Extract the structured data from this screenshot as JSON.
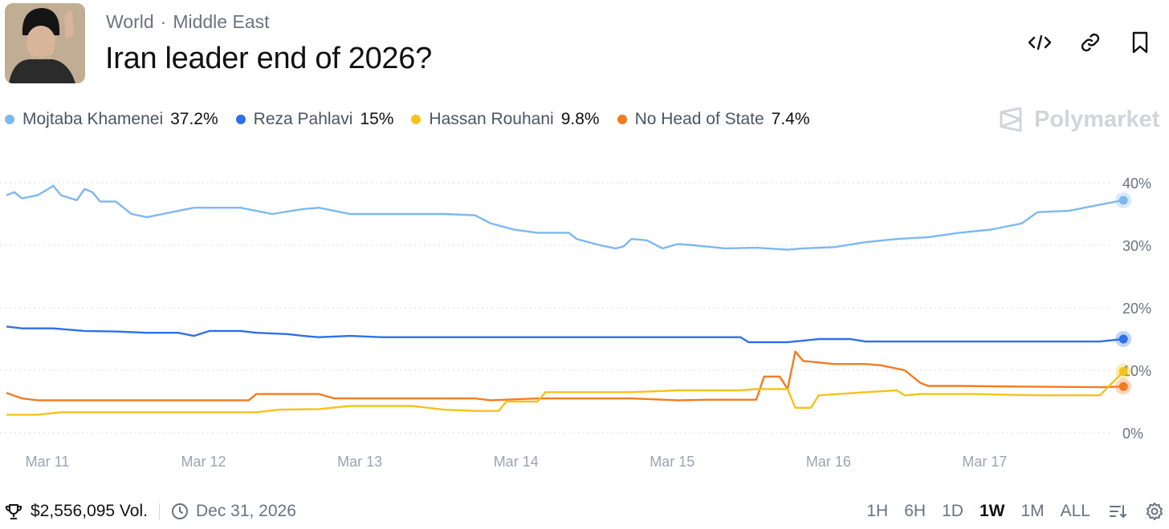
{
  "header": {
    "breadcrumb": [
      "World",
      "Middle East"
    ],
    "title": "Iran leader end of 2026?"
  },
  "brand": "Polymarket",
  "footer": {
    "volume": "$2,556,095 Vol.",
    "end_date": "Dec 31, 2026"
  },
  "time_ranges": [
    "1H",
    "6H",
    "1D",
    "1W",
    "1M",
    "ALL"
  ],
  "active_range": "1W",
  "chart_data": {
    "type": "line",
    "x_ticks": [
      "Mar 11",
      "Mar 12",
      "Mar 13",
      "Mar 14",
      "Mar 15",
      "Mar 16",
      "Mar 17"
    ],
    "y_ticks": [
      "40%",
      "30%",
      "20%",
      "10%",
      "0%"
    ],
    "ylim": [
      0,
      40
    ],
    "x_domain": [
      0,
      7
    ],
    "series": [
      {
        "name": "Mojtaba Khamenei",
        "label": "37.2%",
        "current": 37.2,
        "color": "#7db8f0",
        "points": [
          [
            0,
            38
          ],
          [
            0.05,
            38.5
          ],
          [
            0.1,
            37.5
          ],
          [
            0.2,
            38
          ],
          [
            0.3,
            39.5
          ],
          [
            0.35,
            38
          ],
          [
            0.45,
            37.2
          ],
          [
            0.5,
            39
          ],
          [
            0.55,
            38.5
          ],
          [
            0.6,
            37
          ],
          [
            0.7,
            37
          ],
          [
            0.8,
            35
          ],
          [
            0.9,
            34.5
          ],
          [
            1.0,
            35
          ],
          [
            1.1,
            35.5
          ],
          [
            1.2,
            36
          ],
          [
            1.3,
            36
          ],
          [
            1.5,
            36
          ],
          [
            1.7,
            35
          ],
          [
            1.9,
            35.8
          ],
          [
            2.0,
            36
          ],
          [
            2.1,
            35.5
          ],
          [
            2.2,
            35
          ],
          [
            2.5,
            35
          ],
          [
            2.8,
            35
          ],
          [
            3.0,
            34.8
          ],
          [
            3.1,
            33.5
          ],
          [
            3.25,
            32.5
          ],
          [
            3.4,
            32
          ],
          [
            3.6,
            32
          ],
          [
            3.65,
            31
          ],
          [
            3.8,
            30
          ],
          [
            3.9,
            29.5
          ],
          [
            3.95,
            29.8
          ],
          [
            4.0,
            31
          ],
          [
            4.1,
            30.8
          ],
          [
            4.2,
            29.5
          ],
          [
            4.3,
            30.2
          ],
          [
            4.4,
            30
          ],
          [
            4.6,
            29.5
          ],
          [
            4.8,
            29.6
          ],
          [
            5.0,
            29.3
          ],
          [
            5.1,
            29.5
          ],
          [
            5.3,
            29.7
          ],
          [
            5.5,
            30.5
          ],
          [
            5.7,
            31
          ],
          [
            5.9,
            31.3
          ],
          [
            6.1,
            32
          ],
          [
            6.3,
            32.5
          ],
          [
            6.5,
            33.5
          ],
          [
            6.6,
            35.3
          ],
          [
            6.8,
            35.5
          ],
          [
            6.9,
            36
          ],
          [
            7.0,
            36.5
          ],
          [
            7.15,
            37.2
          ]
        ]
      },
      {
        "name": "Reza Pahlavi",
        "label": "15%",
        "current": 15,
        "color": "#2f6fe8",
        "points": [
          [
            0,
            17
          ],
          [
            0.1,
            16.7
          ],
          [
            0.3,
            16.7
          ],
          [
            0.5,
            16.3
          ],
          [
            0.7,
            16.2
          ],
          [
            0.9,
            16
          ],
          [
            1.1,
            16
          ],
          [
            1.2,
            15.5
          ],
          [
            1.3,
            16.3
          ],
          [
            1.5,
            16.3
          ],
          [
            1.6,
            16
          ],
          [
            1.8,
            15.8
          ],
          [
            1.9,
            15.5
          ],
          [
            2.0,
            15.3
          ],
          [
            2.2,
            15.5
          ],
          [
            2.4,
            15.3
          ],
          [
            2.8,
            15.3
          ],
          [
            3.2,
            15.3
          ],
          [
            3.6,
            15.3
          ],
          [
            4.0,
            15.3
          ],
          [
            4.4,
            15.3
          ],
          [
            4.7,
            15.3
          ],
          [
            4.75,
            14.5
          ],
          [
            5.0,
            14.5
          ],
          [
            5.2,
            15
          ],
          [
            5.4,
            15
          ],
          [
            5.5,
            14.6
          ],
          [
            6.0,
            14.6
          ],
          [
            6.5,
            14.6
          ],
          [
            7.0,
            14.6
          ],
          [
            7.15,
            15
          ]
        ]
      },
      {
        "name": "Hassan Rouhani",
        "label": "9.8%",
        "current": 9.8,
        "color": "#f5c21b",
        "points": [
          [
            0,
            2.9
          ],
          [
            0.2,
            2.9
          ],
          [
            0.35,
            3.3
          ],
          [
            0.6,
            3.3
          ],
          [
            0.9,
            3.3
          ],
          [
            1.2,
            3.3
          ],
          [
            1.6,
            3.3
          ],
          [
            1.75,
            3.7
          ],
          [
            2.0,
            3.8
          ],
          [
            2.2,
            4.3
          ],
          [
            2.6,
            4.3
          ],
          [
            2.8,
            3.7
          ],
          [
            3.0,
            3.5
          ],
          [
            3.15,
            3.5
          ],
          [
            3.2,
            5
          ],
          [
            3.4,
            5
          ],
          [
            3.45,
            6.5
          ],
          [
            3.7,
            6.5
          ],
          [
            4.0,
            6.5
          ],
          [
            4.3,
            6.8
          ],
          [
            4.7,
            6.8
          ],
          [
            4.8,
            7
          ],
          [
            5.0,
            7
          ],
          [
            5.05,
            4
          ],
          [
            5.15,
            4
          ],
          [
            5.2,
            6
          ],
          [
            5.5,
            6.5
          ],
          [
            5.7,
            6.8
          ],
          [
            5.75,
            6
          ],
          [
            5.85,
            6.2
          ],
          [
            6.2,
            6.2
          ],
          [
            6.6,
            6
          ],
          [
            7.0,
            6
          ],
          [
            7.15,
            9.8
          ]
        ]
      },
      {
        "name": "No Head of State",
        "label": "7.4%",
        "current": 7.4,
        "color": "#f47b20",
        "points": [
          [
            0,
            6.4
          ],
          [
            0.1,
            5.5
          ],
          [
            0.2,
            5.2
          ],
          [
            0.4,
            5.2
          ],
          [
            0.6,
            5.2
          ],
          [
            0.8,
            5.2
          ],
          [
            1.0,
            5.2
          ],
          [
            1.3,
            5.2
          ],
          [
            1.55,
            5.2
          ],
          [
            1.6,
            6.2
          ],
          [
            1.8,
            6.2
          ],
          [
            2.0,
            6.2
          ],
          [
            2.1,
            5.5
          ],
          [
            2.5,
            5.5
          ],
          [
            2.8,
            5.5
          ],
          [
            3.0,
            5.5
          ],
          [
            3.1,
            5.2
          ],
          [
            3.4,
            5.5
          ],
          [
            3.7,
            5.5
          ],
          [
            4.0,
            5.5
          ],
          [
            4.3,
            5.2
          ],
          [
            4.5,
            5.3
          ],
          [
            4.8,
            5.3
          ],
          [
            4.85,
            9
          ],
          [
            4.95,
            9
          ],
          [
            5.0,
            7
          ],
          [
            5.05,
            13
          ],
          [
            5.1,
            11.5
          ],
          [
            5.3,
            11
          ],
          [
            5.5,
            11
          ],
          [
            5.6,
            10.8
          ],
          [
            5.75,
            10
          ],
          [
            5.85,
            8
          ],
          [
            5.9,
            7.5
          ],
          [
            6.1,
            7.5
          ],
          [
            6.5,
            7.4
          ],
          [
            7.0,
            7.3
          ],
          [
            7.15,
            7.4
          ]
        ]
      }
    ]
  }
}
